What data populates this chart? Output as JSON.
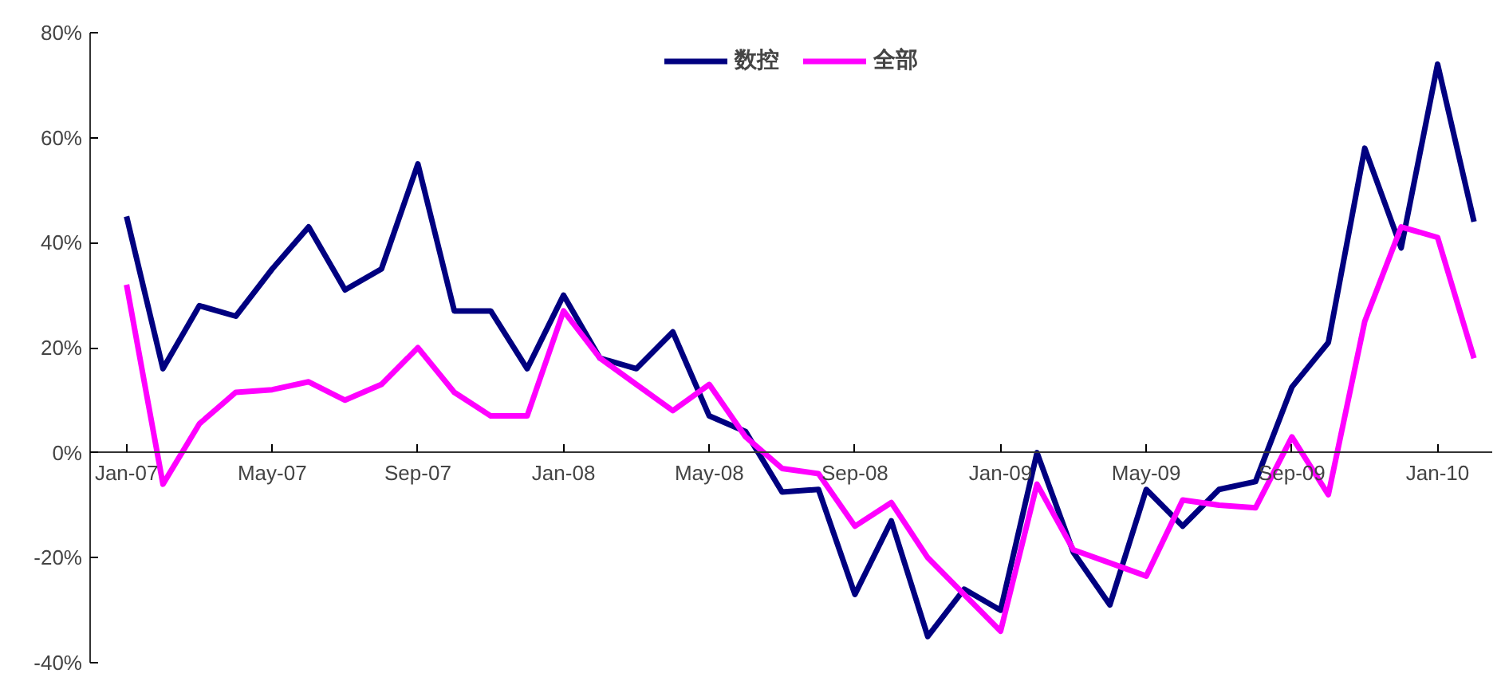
{
  "chart_data": {
    "type": "line",
    "categories": [
      "Jan-07",
      null,
      null,
      null,
      "May-07",
      null,
      null,
      null,
      "Sep-07",
      null,
      null,
      null,
      "Jan-08",
      null,
      null,
      null,
      "May-08",
      null,
      null,
      null,
      "Sep-08",
      null,
      null,
      null,
      "Jan-09",
      null,
      null,
      null,
      "May-09",
      null,
      null,
      null,
      "Sep-09",
      null,
      null,
      null,
      "Jan-10",
      null
    ],
    "series": [
      {
        "name": "数控",
        "color": "#000080",
        "values": [
          45,
          16,
          28,
          26,
          35,
          43,
          31,
          35,
          55,
          27,
          27,
          16,
          30,
          18,
          16,
          23,
          7,
          4,
          -7.5,
          -7,
          -27,
          -13,
          -35,
          -26,
          -30,
          0,
          -19,
          -29,
          -7,
          -14,
          -7,
          -5.5,
          12.5,
          21,
          58,
          39,
          74,
          44
        ]
      },
      {
        "name": "全部",
        "color": "#ff00ff",
        "values": [
          32,
          -6,
          5.5,
          11.5,
          12,
          13.5,
          10,
          13,
          20,
          11.5,
          7,
          7,
          27,
          18,
          13,
          8,
          13,
          3,
          -3,
          -4,
          -14,
          -9.5,
          -20,
          -27,
          -34,
          -6,
          -18.5,
          -21,
          -23.5,
          -9,
          -10,
          -10.5,
          3,
          -8,
          25,
          43,
          41,
          18
        ]
      }
    ],
    "ylim": [
      -40,
      80
    ],
    "yticks": [
      {
        "value": -40,
        "label": "-40%"
      },
      {
        "value": -20,
        "label": "-20%"
      },
      {
        "value": 0,
        "label": "0%"
      },
      {
        "value": 20,
        "label": "20%"
      },
      {
        "value": 40,
        "label": "40%"
      },
      {
        "value": 60,
        "label": "60%"
      },
      {
        "value": 80,
        "label": "80%"
      }
    ],
    "grid": false,
    "legend": "top",
    "marker": "none",
    "line_style": "solid"
  }
}
